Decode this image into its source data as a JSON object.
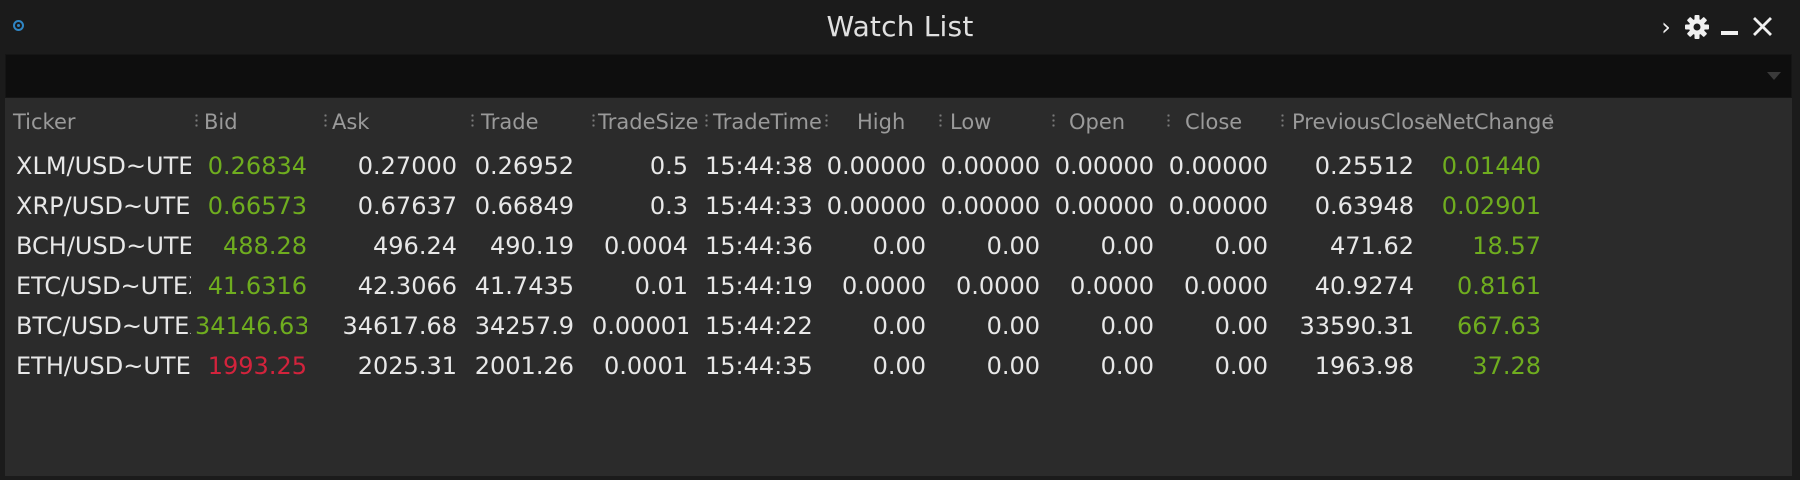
{
  "window": {
    "title": "Watch List",
    "icons": {
      "app": "radio-dot-icon",
      "expand": "chevron-right-icon",
      "settings": "gear-icon",
      "minimize": "minimize-icon",
      "close": "close-icon"
    },
    "chevron_glyph": "›"
  },
  "filter": {
    "value": "",
    "placeholder": "",
    "dropdown_icon": "caret-down-icon"
  },
  "colors": {
    "background": "#1b1b1b",
    "grid_background": "#2b2b2b",
    "filter_background": "#0e0e0e",
    "header_text": "#9a9a9a",
    "cell_text": "#e8e8e8",
    "positive": "#6fad1f",
    "negative": "#d2233c",
    "app_icon": "#2f86c5"
  },
  "table": {
    "columns": [
      "Ticker",
      "Bid",
      "Ask",
      "Trade",
      "TradeSize",
      "TradeTime",
      "High",
      "Low",
      "Open",
      "Close",
      "PreviousClose",
      "NetChange"
    ],
    "rows": [
      [
        "XLM/USD~UTEX",
        "0.26834",
        "0.27000",
        "0.26952",
        "0.5",
        "15:44:38",
        "0.00000",
        "0.00000",
        "0.00000",
        "0.00000",
        "0.25512",
        "0.01440"
      ],
      [
        "XRP/USD~UTEX",
        "0.66573",
        "0.67637",
        "0.66849",
        "0.3",
        "15:44:33",
        "0.00000",
        "0.00000",
        "0.00000",
        "0.00000",
        "0.63948",
        "0.02901"
      ],
      [
        "BCH/USD~UTEX",
        "488.28",
        "496.24",
        "490.19",
        "0.0004",
        "15:44:36",
        "0.00",
        "0.00",
        "0.00",
        "0.00",
        "471.62",
        "18.57"
      ],
      [
        "ETC/USD~UTEX",
        "41.6316",
        "42.3066",
        "41.7435",
        "0.01",
        "15:44:19",
        "0.0000",
        "0.0000",
        "0.0000",
        "0.0000",
        "40.9274",
        "0.8161"
      ],
      [
        "BTC/USD~UTEX",
        "34146.63",
        "34617.68",
        "34257.9",
        "0.00001",
        "15:44:22",
        "0.00",
        "0.00",
        "0.00",
        "0.00",
        "33590.31",
        "667.63"
      ],
      [
        "ETH/USD~UTEX",
        "1993.25",
        "2025.31",
        "2001.26",
        "0.0001",
        "15:44:35",
        "0.00",
        "0.00",
        "0.00",
        "0.00",
        "1963.98",
        "37.28"
      ]
    ],
    "bid_status": [
      "up",
      "up",
      "up",
      "up",
      "up",
      "down"
    ],
    "netchange_status": [
      "up",
      "up",
      "up",
      "up",
      "up",
      "up"
    ]
  }
}
